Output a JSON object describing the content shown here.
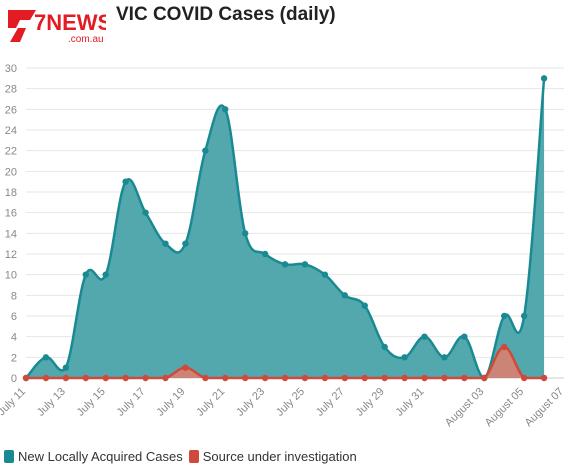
{
  "brand": {
    "logo_text": "7NEWS",
    "logo_sub": ".com.au"
  },
  "colors": {
    "teal": "#1a8a92",
    "teal_fill": "#4aa3aa",
    "red": "#cf4a3a",
    "red_fill": "#d98070",
    "grid": "#e6e6e6"
  },
  "chart_data": {
    "type": "area",
    "title": "VIC COVID Cases (daily)",
    "xlabel": "",
    "ylabel": "",
    "ylim": [
      0,
      30
    ],
    "yticks": [
      0,
      2,
      4,
      6,
      8,
      10,
      12,
      14,
      16,
      18,
      20,
      22,
      24,
      26,
      28,
      30
    ],
    "grid": true,
    "legend_position": "bottom-left",
    "x": [
      "July 11",
      "July 12",
      "July 13",
      "July 14",
      "July 15",
      "July 16",
      "July 17",
      "July 18",
      "July 19",
      "July 20",
      "July 21",
      "July 22",
      "July 23",
      "July 24",
      "July 25",
      "July 26",
      "July 27",
      "July 28",
      "July 29",
      "July 30",
      "July 31",
      "August 01",
      "August 02",
      "August 03",
      "August 04",
      "August 05",
      "August 06",
      "August 07"
    ],
    "xtick_labels": [
      "July 11",
      "July 13",
      "July 15",
      "July 17",
      "July 19",
      "July 21",
      "July 23",
      "July 25",
      "July 27",
      "July 29",
      "July 31",
      "August 03",
      "August 05",
      "August 07"
    ],
    "series": [
      {
        "name": "New Locally Acquired Cases",
        "color": "#1a8a92",
        "values": [
          0,
          2,
          1,
          10,
          10,
          19,
          16,
          13,
          13,
          22,
          26,
          14,
          12,
          11,
          11,
          10,
          8,
          7,
          3,
          2,
          4,
          2,
          4,
          0,
          6,
          6,
          29,
          null
        ]
      },
      {
        "name": "Source under investigation",
        "color": "#cf4a3a",
        "values": [
          0,
          0,
          0,
          0,
          0,
          0,
          0,
          0,
          1,
          0,
          0,
          0,
          0,
          0,
          0,
          0,
          0,
          0,
          0,
          0,
          0,
          0,
          0,
          0,
          3,
          0,
          0,
          null
        ]
      }
    ]
  }
}
